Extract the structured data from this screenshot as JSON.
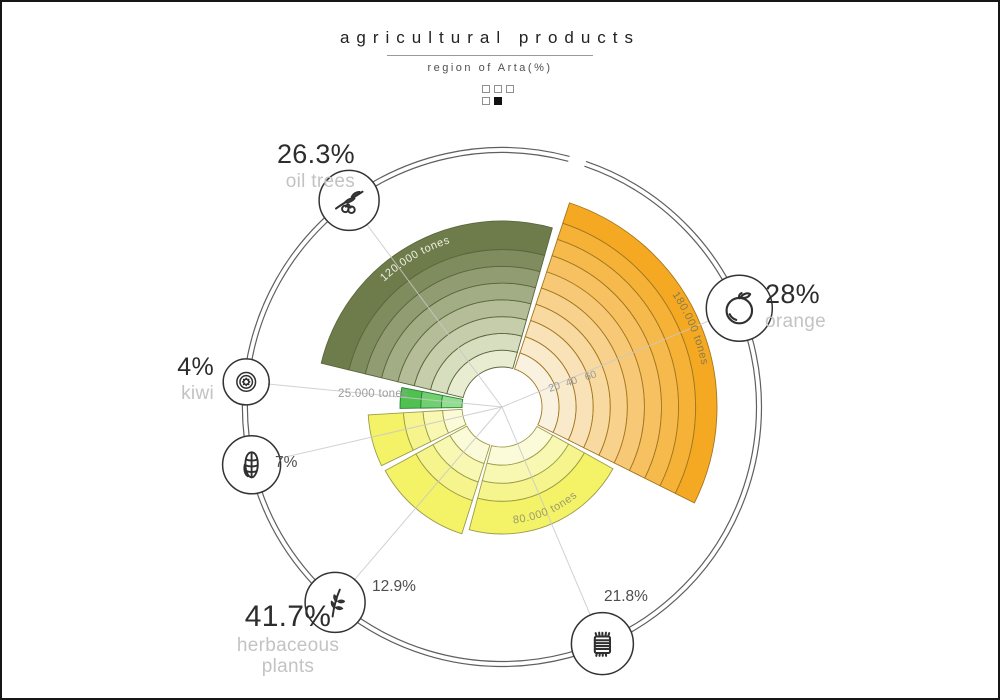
{
  "header": {
    "title": "agricultural products",
    "subtitle": "region of Arta(%)",
    "indicator_rows": [
      [
        "empty",
        "empty",
        "empty"
      ],
      [
        "empty",
        "filled"
      ]
    ]
  },
  "chart_data": {
    "type": "polar-area",
    "title": "agricultural products",
    "subtitle": "region of Arta(%)",
    "value_unit": "tones",
    "radial_axis_ticks": [
      "20",
      "40",
      "60"
    ],
    "start_angle_deg": -73,
    "ring_color": "#5f5f5f",
    "spoke_color": "#c9c9c9",
    "segments": [
      {
        "id": "orange",
        "name": "orange",
        "percent": 28,
        "percent_label": "28%",
        "tones_label": "180.000 tones",
        "bands": 10,
        "color_inner": "#FAF2E1",
        "color_outer": "#F5A922",
        "stroke": "#A3771F",
        "text_color": "#8a7a4a",
        "icon": "orange-icon"
      },
      {
        "id": "fodder",
        "name": "",
        "percent": 21.8,
        "percent_label": "21.8%",
        "tones_label": "80.000 tones",
        "bands": 4,
        "color_inner": "#FBFBDA",
        "color_outer": "#F4F266",
        "stroke": "#9C9C4A",
        "text_color": "#9b9b6e",
        "icon": "hay-bale-icon"
      },
      {
        "id": "herb",
        "name": "",
        "percent": 12.9,
        "percent_label": "12.9%",
        "tones_label": "",
        "bands": 4,
        "color_inner": "#FBFBDA",
        "color_outer": "#F4F266",
        "stroke": "#9C9C4A",
        "text_color": "#9b9b6e",
        "icon": "herb-sprig-icon"
      },
      {
        "id": "corn",
        "name": "",
        "percent": 7,
        "percent_label": "7%",
        "tones_label": "",
        "bands": 4,
        "color_inner": "#FBFBDA",
        "color_outer": "#F4F266",
        "stroke": "#9C9C4A",
        "text_color": "#9b9b6e",
        "icon": "corn-icon"
      },
      {
        "id": "kiwi",
        "name": "kiwi",
        "percent": 4,
        "percent_label": "4%",
        "tones_label": "25.000 tones",
        "bands": 3,
        "color_inner": "#8FDF8F",
        "color_outer": "#50C050",
        "stroke": "#2E7D32",
        "text_color": "#9c9c9c",
        "icon": "kiwi-slice-icon"
      },
      {
        "id": "oil_trees",
        "name": "oil trees",
        "percent": 26.3,
        "percent_label": "26.3%",
        "tones_label": "120.000 tones",
        "bands": 8,
        "color_inner": "#E8EDD2",
        "color_outer": "#6E7C4B",
        "stroke": "#59673C",
        "text_color": "#EDEFE0",
        "icon": "olive-branch-icon"
      }
    ],
    "group_label": {
      "percent_label": "41.7%",
      "name_lines": [
        "herbaceous",
        "plants"
      ],
      "members": [
        "fodder",
        "herb",
        "corn"
      ]
    }
  }
}
